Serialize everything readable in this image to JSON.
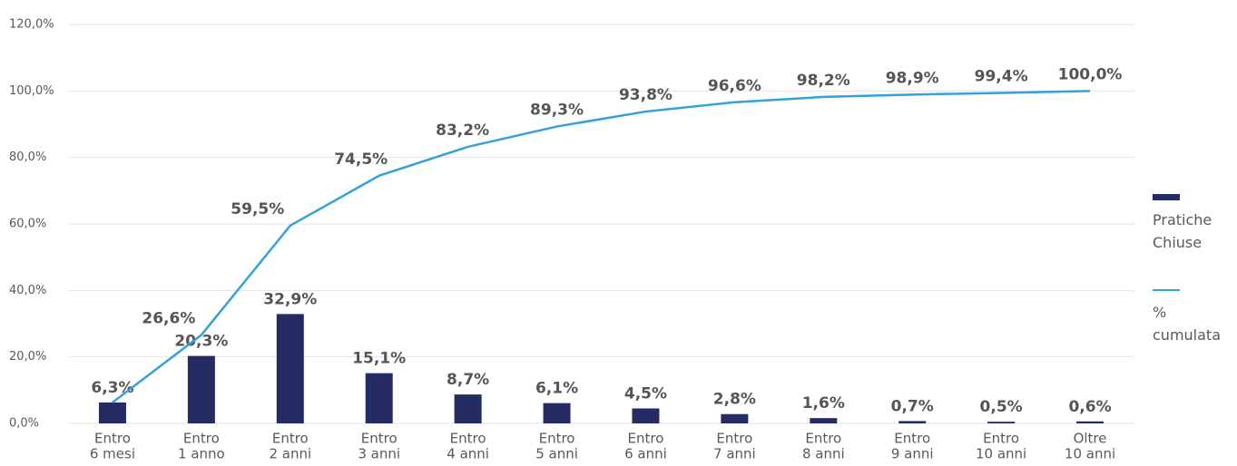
{
  "chart_data": {
    "type": "bar_line",
    "categories": [
      [
        "Entro",
        "6 mesi"
      ],
      [
        "Entro",
        "1 anno"
      ],
      [
        "Entro",
        "2 anni"
      ],
      [
        "Entro",
        "3 anni"
      ],
      [
        "Entro",
        "4 anni"
      ],
      [
        "Entro",
        "5 anni"
      ],
      [
        "Entro",
        "6 anni"
      ],
      [
        "Entro",
        "7 anni"
      ],
      [
        "Entro",
        "8 anni"
      ],
      [
        "Entro",
        "9 anni"
      ],
      [
        "Entro",
        "10 anni"
      ],
      [
        "Oltre",
        "10 anni"
      ]
    ],
    "series": [
      {
        "name": "Pratiche Chiuse",
        "type": "bar",
        "color": "#252c63",
        "values": [
          6.3,
          20.3,
          32.9,
          15.1,
          8.7,
          6.1,
          4.5,
          2.8,
          1.6,
          0.7,
          0.5,
          0.6
        ],
        "value_labels": [
          "6,3%",
          "20,3%",
          "32,9%",
          "15,1%",
          "8,7%",
          "6,1%",
          "4,5%",
          "2,8%",
          "1,6%",
          "0,7%",
          "0,5%",
          "0,6%"
        ]
      },
      {
        "name": "% cumulata",
        "type": "line",
        "color": "#35a0d9",
        "values": [
          6.3,
          26.6,
          59.5,
          74.5,
          83.2,
          89.3,
          93.8,
          96.6,
          98.2,
          98.9,
          99.4,
          100.0
        ],
        "value_labels": [
          null,
          "26,6%",
          "59,5%",
          "74,5%",
          "83,2%",
          "89,3%",
          "93,8%",
          "96,6%",
          "98,2%",
          "98,9%",
          "99,4%",
          "100,0%"
        ]
      }
    ],
    "ylim": [
      0,
      120
    ],
    "yticks": [
      {
        "value": 0,
        "label": "0,0%"
      },
      {
        "value": 20,
        "label": "20,0%"
      },
      {
        "value": 40,
        "label": "40,0%"
      },
      {
        "value": 60,
        "label": "60,0%"
      },
      {
        "value": 80,
        "label": "80,0%"
      },
      {
        "value": 100,
        "label": "100,0%"
      },
      {
        "value": 120,
        "label": "120,0%"
      }
    ],
    "grid": true,
    "legend": "right"
  }
}
